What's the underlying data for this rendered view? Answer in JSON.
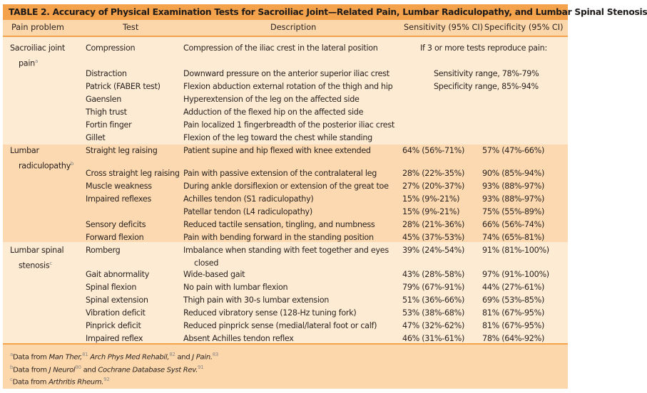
{
  "title": "TABLE 2.  Accuracy of Physical Examination Tests for Sacroiliac Joint—Related Pain, Lumbar Radiculopathy, and Lumbar Spinal Stenosis",
  "headers": [
    "Pain problem",
    "Test",
    "Description",
    "Sensitivity (95% CI)",
    "Specificity (95% CI)"
  ],
  "colors": {
    "title_bar": "#f4a24c",
    "header_bg": "#fcd7ab",
    "light_section": "#fdebd4",
    "dark_section": "#fcd9b0"
  },
  "sections": [
    {
      "problem": "Sacroiliac joint",
      "problem_line2": "pain",
      "note": "a",
      "summary": [
        "If 3 or more tests reproduce pain:",
        "Sensitivity range, 78%-79%",
        "Specificity range, 85%-94%"
      ],
      "rows": [
        {
          "test": "Compression",
          "desc": "Compression of the iliac crest in the lateral position"
        },
        {
          "test": "Distraction",
          "desc": "Downward pressure on the anterior superior iliac crest"
        },
        {
          "test": "Patrick (FABER test)",
          "desc": "Flexion abduction external rotation of the thigh and hip"
        },
        {
          "test": "Gaenslen",
          "desc": "Hyperextension of the leg on the affected side"
        },
        {
          "test": "Thigh trust",
          "desc": "Adduction of the flexed hip on the affected side"
        },
        {
          "test": "Fortin finger",
          "desc": "Pain localized 1 fingerbreadth of the posterior iliac crest"
        },
        {
          "test": "Gillet",
          "desc": "Flexion of the leg toward the chest while standing"
        }
      ]
    },
    {
      "problem": "Lumbar",
      "problem_line2": "radiculopathy",
      "note": "b",
      "rows": [
        {
          "test": "Straight leg raising",
          "desc": "Patient supine and hip flexed with knee extended",
          "sens": "64% (56%-71%)",
          "spec": "57% (47%-66%)"
        },
        {
          "test": "Cross straight leg raising",
          "desc": "Pain with passive extension of the contralateral leg",
          "sens": "28% (22%-35%)",
          "spec": "90% (85%-94%)"
        },
        {
          "test": "Muscle weakness",
          "desc": "During ankle dorsiflexion or extension of the great toe",
          "sens": "27% (20%-37%)",
          "spec": "93% (88%-97%)"
        },
        {
          "test": "Impaired reflexes",
          "desc": "Achilles tendon (S1 radiculopathy)",
          "sens": "15% (9%-21%)",
          "spec": "93% (88%-97%)"
        },
        {
          "test": "",
          "desc": "Patellar tendon (L4 radiculopathy)",
          "sens": "15% (9%-21%)",
          "spec": "75% (55%-89%)"
        },
        {
          "test": "Sensory deficits",
          "desc": "Reduced tactile sensation, tingling, and numbness",
          "sens": "28% (21%-36%)",
          "spec": "66% (56%-74%)"
        },
        {
          "test": "Forward flexion",
          "desc": "Pain with bending forward in the standing position",
          "sens": "45% (37%-53%)",
          "spec": "74% (65%-81%)"
        }
      ]
    },
    {
      "problem": "Lumbar spinal",
      "problem_line2": "stenosis",
      "note": "c",
      "rows": [
        {
          "test": "Romberg",
          "desc": "Imbalance when standing with feet together and eyes",
          "desc2": "closed",
          "sens": "39% (24%-54%)",
          "spec": "91% (81%-100%)"
        },
        {
          "test": "Gait abnormality",
          "desc": "Wide-based gait",
          "sens": "43% (28%-58%)",
          "spec": "97% (91%-100%)"
        },
        {
          "test": "Spinal flexion",
          "desc": "No pain with lumbar flexion",
          "sens": "79% (67%-91%)",
          "spec": "44% (27%-61%)"
        },
        {
          "test": "Spinal extension",
          "desc": "Thigh pain with 30-s lumbar extension",
          "sens": "51% (36%-66%)",
          "spec": "69% (53%-85%)"
        },
        {
          "test": "Vibration deficit",
          "desc": "Reduced vibratory sense (128-Hz tuning fork)",
          "sens": "53% (38%-68%)",
          "spec": "81% (67%-95%)"
        },
        {
          "test": "Pinprick deficit",
          "desc": "Reduced pinprick sense (medial/lateral foot or calf)",
          "sens": "47% (32%-62%)",
          "spec": "81% (67%-95%)"
        },
        {
          "test": "Impaired reflex",
          "desc": "Absent Achilles tendon reflex",
          "sens": "46% (31%-61%)",
          "spec": "78% (64%-92%)"
        }
      ]
    }
  ],
  "footnotes": [
    [
      {
        "t": "a",
        "sup": true
      },
      {
        "t": "Data from "
      },
      {
        "t": "Man Ther,",
        "i": true
      },
      {
        "t": "81",
        "sup": true
      },
      {
        "t": " "
      },
      {
        "t": "Arch Phys Med Rehabil,",
        "i": true
      },
      {
        "t": "82",
        "sup": true
      },
      {
        "t": " and "
      },
      {
        "t": "J Pain.",
        "i": true
      },
      {
        "t": "83",
        "sup": true
      }
    ],
    [
      {
        "t": "b",
        "sup": true
      },
      {
        "t": "Data from "
      },
      {
        "t": "J Neurol",
        "i": true
      },
      {
        "t": "90",
        "sup": true
      },
      {
        "t": " and "
      },
      {
        "t": "Cochrane Database Syst Rev.",
        "i": true
      },
      {
        "t": "91",
        "sup": true
      }
    ],
    [
      {
        "t": "c",
        "sup": true
      },
      {
        "t": "Data from "
      },
      {
        "t": "Arthritis Rheum.",
        "i": true
      },
      {
        "t": "92",
        "sup": true
      }
    ]
  ]
}
